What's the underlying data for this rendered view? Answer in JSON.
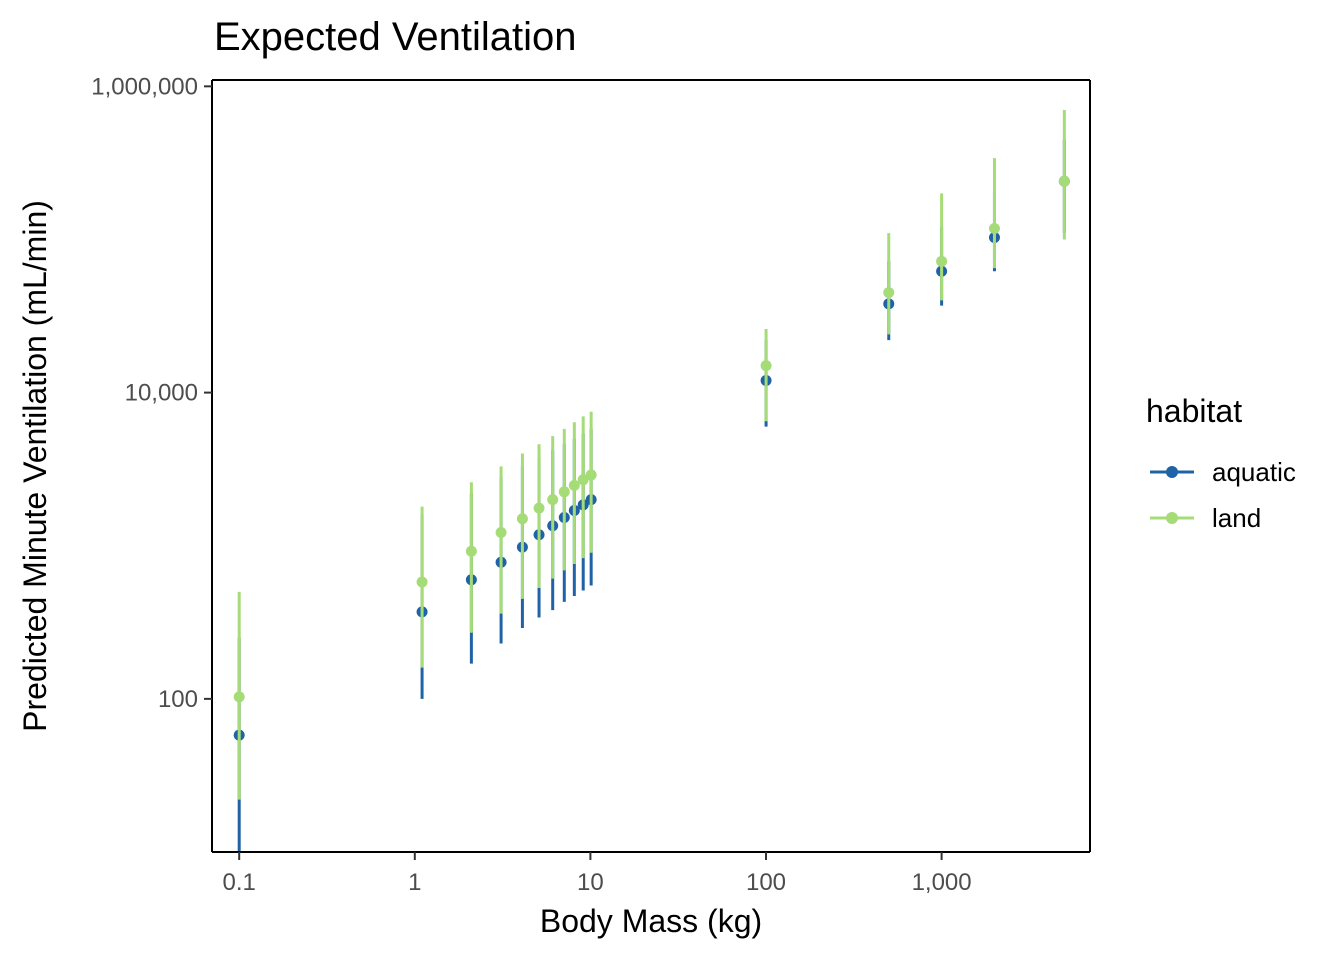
{
  "chart_data": {
    "type": "scatter",
    "title": "Expected Ventilation",
    "xlabel": "Body Mass (kg)",
    "ylabel": "Predicted Minute Ventilation (mL/min)",
    "x_scale": "log10",
    "y_scale": "log10",
    "xlim": [
      0.07,
      7000
    ],
    "ylim": [
      10,
      1100000
    ],
    "x_ticks": [
      {
        "value": 0.1,
        "label": "0.1"
      },
      {
        "value": 1,
        "label": "1"
      },
      {
        "value": 10,
        "label": "10"
      },
      {
        "value": 100,
        "label": "100"
      },
      {
        "value": 1000,
        "label": "1,000"
      }
    ],
    "y_ticks": [
      {
        "value": 100,
        "label": "100"
      },
      {
        "value": 10000,
        "label": "10,000"
      },
      {
        "value": 1000000,
        "label": "1,000,000"
      }
    ],
    "grid": false,
    "legend": {
      "title": "habitat",
      "position": "right",
      "entries": [
        {
          "label": "aquatic",
          "color": "#1f63a6"
        },
        {
          "label": "land",
          "color": "#a6dc78"
        }
      ]
    },
    "series": [
      {
        "name": "aquatic",
        "color": "#1f63a6",
        "x": [
          0.1,
          1.1,
          2.1,
          3.1,
          4.1,
          5.1,
          6.1,
          7.1,
          8.1,
          9.1,
          10.1,
          100.1,
          500.1,
          1000.1,
          2000.1,
          5000.1
        ],
        "y": [
          58,
          370,
          600,
          780,
          980,
          1180,
          1350,
          1530,
          1700,
          1850,
          2000,
          12000,
          38000,
          62000,
          103000,
          240000
        ],
        "ymin": [
          10,
          100,
          170,
          230,
          290,
          340,
          380,
          430,
          470,
          510,
          550,
          6000,
          22000,
          37000,
          62000,
          110000
        ],
        "ymax": [
          250,
          1600,
          2200,
          2800,
          3300,
          3800,
          4200,
          4600,
          5000,
          5400,
          5800,
          22000,
          72000,
          120000,
          205000,
          450000
        ]
      },
      {
        "name": "land",
        "color": "#a6dc78",
        "x": [
          0.1,
          1.1,
          2.1,
          3.1,
          4.1,
          5.1,
          6.1,
          7.1,
          8.1,
          9.1,
          10.1,
          100.1,
          500.1,
          1000.1,
          2000.1,
          5000.1
        ],
        "y": [
          103,
          580,
          920,
          1220,
          1500,
          1760,
          2000,
          2250,
          2480,
          2700,
          2900,
          15000,
          45000,
          72000,
          118000,
          240000
        ],
        "ymin": [
          22,
          160,
          270,
          360,
          450,
          530,
          610,
          690,
          760,
          830,
          900,
          6500,
          24000,
          40000,
          65000,
          100000
        ],
        "ymax": [
          500,
          1800,
          2600,
          3300,
          4000,
          4600,
          5200,
          5800,
          6400,
          7000,
          7500,
          26000,
          110000,
          200000,
          340000,
          700000
        ]
      }
    ]
  }
}
